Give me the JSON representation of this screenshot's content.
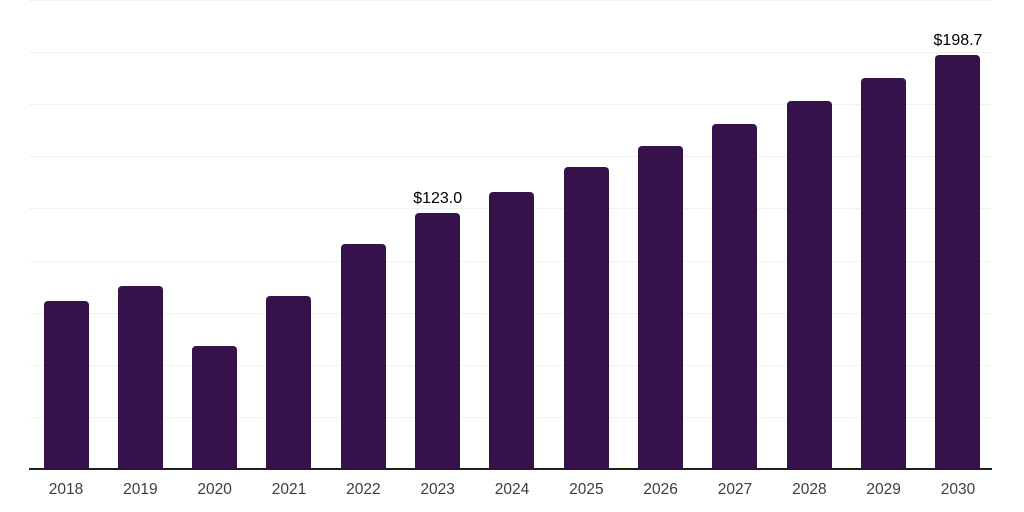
{
  "chart_data": {
    "type": "bar",
    "categories": [
      "2018",
      "2019",
      "2020",
      "2021",
      "2022",
      "2023",
      "2024",
      "2025",
      "2026",
      "2027",
      "2028",
      "2029",
      "2030"
    ],
    "values": [
      80.6,
      87.8,
      58.8,
      83.0,
      108.0,
      123.0,
      132.9,
      144.9,
      155.0,
      165.5,
      176.6,
      187.7,
      198.7
    ],
    "data_labels": [
      {
        "index": 5,
        "text": "$123.0"
      },
      {
        "index": 12,
        "text": "$198.7"
      }
    ],
    "title": "",
    "xlabel": "",
    "ylabel": "",
    "ylim": [
      0,
      225
    ],
    "gridline_step": 25,
    "grid": "horizontal-only",
    "legend": "none",
    "y_axis_tick_labels_visible": false
  },
  "colors": {
    "background": "#ffffff",
    "bar": "#36124b",
    "gridline": "#f1f0f2",
    "axis_line": "#1f1f1f",
    "tick_label": "#3d3d3d",
    "data_label": "#000000"
  }
}
